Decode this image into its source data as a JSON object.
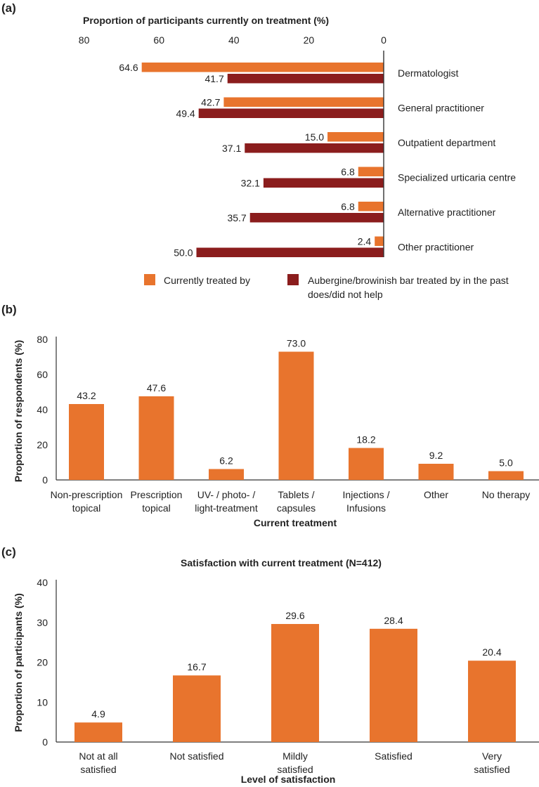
{
  "colors": {
    "current": "#e8742d",
    "past": "#8b1d1d",
    "axis": "#333333"
  },
  "chart_data": [
    {
      "panel": "(a)",
      "type": "bar",
      "orientation": "horizontal",
      "title": "Proportion of participants currently on treatment (%)",
      "xlim": [
        80,
        0
      ],
      "xticks": [
        "80",
        "60",
        "40",
        "20",
        "0"
      ],
      "categories": [
        "Dermatologist",
        "General practitioner",
        "Outpatient department",
        "Specialized urticaria centre",
        "Alternative practitioner",
        "Other practitioner"
      ],
      "series": [
        {
          "name": "Currently treated by",
          "values": [
            64.6,
            42.7,
            15.0,
            6.8,
            6.8,
            2.4
          ],
          "labels": [
            "64.6",
            "42.7",
            "15.0",
            "6.8",
            "6.8",
            "2.4"
          ]
        },
        {
          "name": "Aubergine/browinish bar treated by in the past does/did not help",
          "values": [
            41.7,
            49.4,
            37.1,
            32.1,
            35.7,
            50.0
          ],
          "labels": [
            "41.7",
            "49.4",
            "37.1",
            "32.1",
            "35.7",
            "50.0"
          ]
        }
      ],
      "legend": {
        "current": "Currently treated by",
        "past_line1": "Aubergine/browinish bar treated by in the past",
        "past_line2": "does/did not help"
      }
    },
    {
      "panel": "(b)",
      "type": "bar",
      "xlabel": "Current treatment",
      "ylabel": "Proportion of respondents (%)",
      "ylim": [
        0,
        80
      ],
      "yticks": [
        "0",
        "20",
        "40",
        "60",
        "80"
      ],
      "categories": [
        [
          "Non-prescription",
          "topical"
        ],
        [
          "Prescription",
          "topical"
        ],
        [
          "UV- / photo- /",
          "light-treatment"
        ],
        [
          "Tablets /",
          "capsules"
        ],
        [
          "Injections /",
          "Infusions"
        ],
        [
          "Other"
        ],
        [
          "No therapy"
        ]
      ],
      "values": [
        43.2,
        47.6,
        6.2,
        73.0,
        18.2,
        9.2,
        5.0
      ],
      "labels": [
        "43.2",
        "47.6",
        "6.2",
        "73.0",
        "18.2",
        "9.2",
        "5.0"
      ]
    },
    {
      "panel": "(c)",
      "type": "bar",
      "title": "Satisfaction with current treatment (N=412)",
      "xlabel": "Level of satisfaction",
      "ylabel": "Proportion of participants (%)",
      "ylim": [
        0,
        40
      ],
      "yticks": [
        "0",
        "10",
        "20",
        "30",
        "40"
      ],
      "categories": [
        [
          "Not at all",
          "satisfied"
        ],
        [
          "Not satisfied"
        ],
        [
          "Mildly",
          "satisfied"
        ],
        [
          "Satisfied"
        ],
        [
          "Very",
          "satisfied"
        ]
      ],
      "values": [
        4.9,
        16.7,
        29.6,
        28.4,
        20.4
      ],
      "labels": [
        "4.9",
        "16.7",
        "29.6",
        "28.4",
        "20.4"
      ]
    }
  ]
}
